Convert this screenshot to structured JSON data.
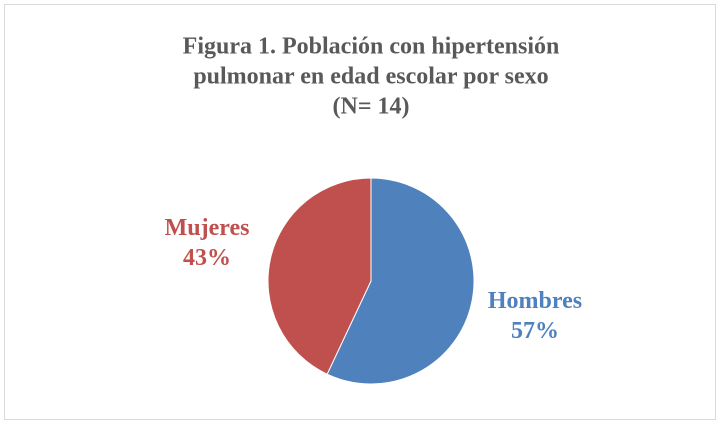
{
  "chart_data": {
    "type": "pie",
    "title": [
      "Figura 1. Población con hipertensión",
      "pulmonar en edad escolar por sexo",
      "(N= 14)"
    ],
    "categories": [
      "Hombres",
      "Mujeres"
    ],
    "values": [
      57,
      43
    ],
    "value_labels": [
      "57%",
      "43%"
    ],
    "colors": [
      "#4f81bd",
      "#c0504d"
    ]
  }
}
